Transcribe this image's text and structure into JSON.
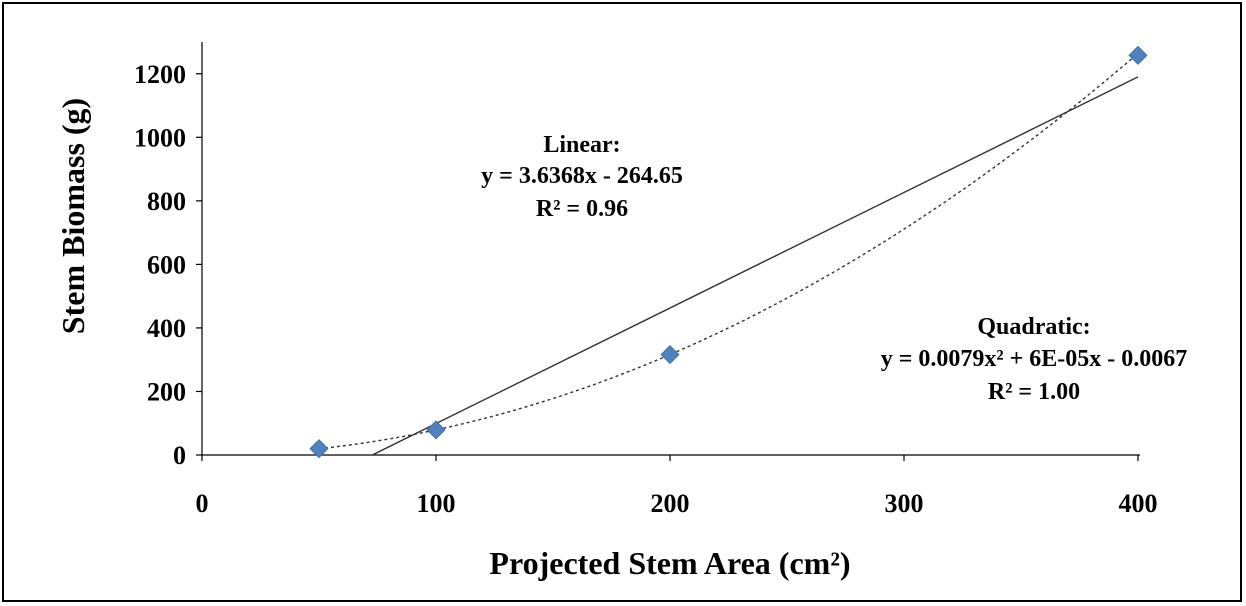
{
  "chart_data": {
    "type": "scatter",
    "xlabel": "Projected Stem Area (cm²)",
    "ylabel": "Stem Biomass (g)",
    "xlim": [
      0,
      400
    ],
    "ylim": [
      0,
      1300
    ],
    "x_ticks": [
      0,
      100,
      200,
      300,
      400
    ],
    "y_ticks": [
      0,
      200,
      400,
      600,
      800,
      1000,
      1200
    ],
    "grid": false,
    "marker_color": "#4F81BD",
    "series": [
      {
        "x": [
          50,
          100,
          200,
          400
        ],
        "y": [
          20,
          79,
          316,
          1258
        ]
      }
    ],
    "trendlines": {
      "linear": {
        "slope": 3.6368,
        "intercept": -264.65,
        "x_range": [
          72.8,
          400
        ],
        "label_title": "Linear:",
        "label_equation": "y = 3.6368x - 264.65",
        "label_r2": "R² = 0.96"
      },
      "quadratic": {
        "a": 0.0079,
        "b": 6e-05,
        "c": -0.0067,
        "x_range": [
          50,
          400
        ],
        "label_title": "Quadratic:",
        "label_equation": "y = 0.0079x² + 6E-05x - 0.0067",
        "label_r2": "R² = 1.00"
      }
    }
  }
}
